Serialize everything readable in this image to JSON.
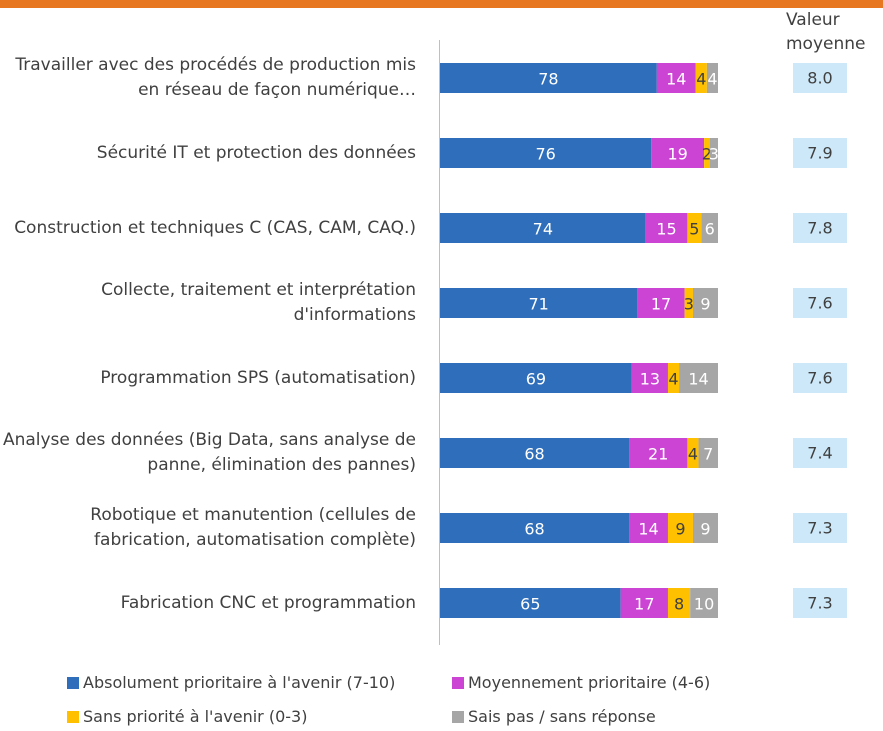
{
  "chart_data": {
    "type": "bar",
    "orientation": "horizontal",
    "stacked": true,
    "categories": [
      "Travailler avec des procédés de production mis en réseau de façon numérique…",
      "Sécurité IT et protection des données",
      "Construction et techniques C (CAS, CAM, CAQ.)",
      "Collecte, traitement et interprétation d'informations",
      "Programmation SPS (automatisation)",
      "Analyse des données (Big Data, sans analyse de panne, élimination des pannes)",
      "Robotique et manutention (cellules de fabrication, automatisation complète)",
      "Fabrication CNC et programmation"
    ],
    "series": [
      {
        "name": "Absolument prioritaire à l'avenir (7-10)",
        "color": "#2f6eba",
        "values": [
          78,
          76,
          74,
          71,
          69,
          68,
          68,
          65
        ]
      },
      {
        "name": "Moyennement prioritaire (4-6)",
        "color": "#cc44d4",
        "values": [
          14,
          19,
          15,
          17,
          13,
          21,
          14,
          17
        ]
      },
      {
        "name": "Sans priorité à l'avenir (0-3)",
        "color": "#ffc000",
        "values": [
          4,
          2,
          5,
          3,
          4,
          4,
          9,
          8
        ]
      },
      {
        "name": "Sais pas / sans réponse",
        "color": "#a6a6a6",
        "values": [
          4,
          3,
          6,
          9,
          14,
          7,
          9,
          10
        ]
      }
    ],
    "xlim": [
      0,
      100
    ],
    "average": {
      "title": "Valeur moyenne",
      "color": "#cde9f9",
      "values": [
        8.0,
        7.9,
        7.8,
        7.6,
        7.6,
        7.4,
        7.3,
        7.3
      ],
      "value_labels": [
        "8.0",
        "7.9",
        "7.8",
        "7.6",
        "7.6",
        "7.4",
        "7.3",
        "7.3"
      ]
    }
  }
}
